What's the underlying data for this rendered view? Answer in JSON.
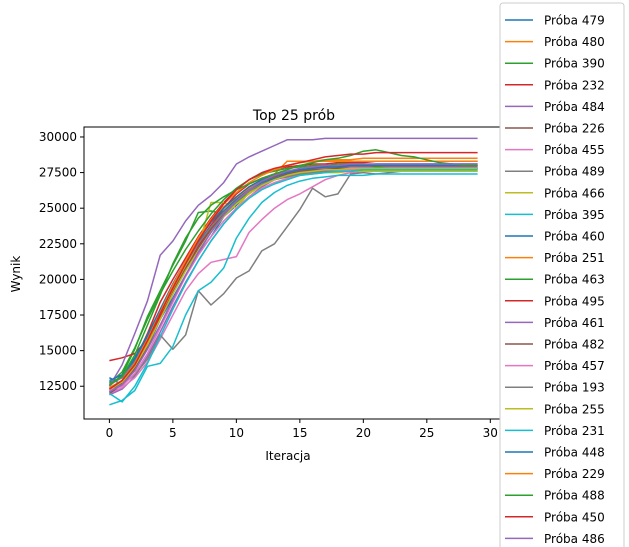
{
  "chart_data": {
    "type": "line",
    "title": "Top 25 prób",
    "xlabel": "Iteracja",
    "ylabel": "Wynik",
    "xlim": [
      -2,
      31
    ],
    "ylim": [
      10200,
      30700
    ],
    "xticks": [
      0,
      5,
      10,
      15,
      20,
      25,
      30
    ],
    "xtick_labels": [
      "0",
      "5",
      "10",
      "15",
      "20",
      "25",
      "30"
    ],
    "yticks": [
      12500,
      15000,
      17500,
      20000,
      22500,
      25000,
      27500,
      30000
    ],
    "ytick_labels": [
      "12500",
      "15000",
      "17500",
      "20000",
      "22500",
      "25000",
      "27500",
      "30000"
    ],
    "grid": false,
    "legend_position": "outside-right",
    "x": [
      0,
      1,
      2,
      3,
      4,
      5,
      6,
      7,
      8,
      9,
      10,
      11,
      12,
      13,
      14,
      15,
      16,
      17,
      18,
      19,
      20,
      21,
      22,
      23,
      24,
      25,
      26,
      27,
      28,
      29
    ],
    "series": [
      {
        "name": "Próba 479",
        "color": "#1f77b4",
        "values": [
          13100,
          12600,
          13800,
          15200,
          17200,
          18700,
          20300,
          21800,
          23000,
          24400,
          25200,
          26200,
          26600,
          27000,
          27300,
          27500,
          27700,
          27800,
          27900,
          28000,
          28000,
          28100,
          28100,
          28100,
          28100,
          28100,
          28100,
          28100,
          28100,
          28100
        ]
      },
      {
        "name": "Próba 480",
        "color": "#ff7f0e",
        "values": [
          12300,
          12800,
          14000,
          15700,
          17600,
          19300,
          20900,
          22300,
          23600,
          24800,
          25700,
          26400,
          26900,
          27200,
          27500,
          27700,
          27800,
          27900,
          27900,
          28000,
          28000,
          28000,
          28000,
          28000,
          28000,
          28000,
          28000,
          28000,
          28000,
          28000
        ]
      },
      {
        "name": "Próba 390",
        "color": "#2ca02c",
        "values": [
          12500,
          13300,
          15100,
          17400,
          19200,
          21000,
          22700,
          24700,
          24800,
          24600,
          25400,
          26100,
          26600,
          27000,
          27300,
          27500,
          27600,
          27700,
          27700,
          27700,
          27800,
          27800,
          27800,
          27800,
          27800,
          27800,
          27800,
          27800,
          27800,
          27800
        ]
      },
      {
        "name": "Próba 232",
        "color": "#d62728",
        "values": [
          12200,
          12900,
          14300,
          16200,
          18400,
          20000,
          21500,
          23000,
          24300,
          25400,
          26300,
          27000,
          27400,
          27700,
          27900,
          28000,
          28100,
          28100,
          28200,
          28200,
          28200,
          28300,
          28300,
          28300,
          28300,
          28300,
          28300,
          28300,
          28300,
          28300
        ]
      },
      {
        "name": "Próba 484",
        "color": "#9467bd",
        "values": [
          11900,
          12300,
          13200,
          14600,
          16300,
          18100,
          19800,
          21300,
          22700,
          23900,
          24900,
          25800,
          26500,
          27000,
          27400,
          27600,
          27700,
          27800,
          27800,
          27900,
          27900,
          27900,
          27900,
          27900,
          27900,
          27900,
          27900,
          27900,
          27900,
          27900
        ]
      },
      {
        "name": "Próba 226",
        "color": "#8c564b",
        "values": [
          12100,
          12700,
          13800,
          15500,
          17300,
          19100,
          20800,
          22300,
          23600,
          24700,
          25600,
          26300,
          26800,
          27200,
          27400,
          27600,
          27700,
          27700,
          27800,
          27800,
          27800,
          27800,
          27800,
          27800,
          27800,
          27800,
          27800,
          27800,
          27800,
          27800
        ]
      },
      {
        "name": "Próba 455",
        "color": "#e377c2",
        "values": [
          12000,
          12400,
          13100,
          14200,
          15800,
          17500,
          19200,
          20400,
          21200,
          21400,
          21600,
          23300,
          24200,
          25000,
          25600,
          26000,
          26500,
          27000,
          27300,
          27500,
          27600,
          27700,
          27700,
          27800,
          27800,
          27800,
          27800,
          27800,
          27800,
          27800
        ]
      },
      {
        "name": "Próba 489",
        "color": "#7f7f7f",
        "values": [
          12400,
          12600,
          13300,
          14400,
          16100,
          15100,
          16100,
          19200,
          18200,
          19000,
          20100,
          20600,
          22000,
          22500,
          23700,
          24900,
          26400,
          25800,
          26000,
          27400,
          27500,
          27400,
          27500,
          27600,
          27600,
          27600,
          27600,
          27600,
          27600,
          27600
        ]
      },
      {
        "name": "Próba 466",
        "color": "#bcbd22",
        "values": [
          12200,
          12900,
          14100,
          15700,
          17500,
          19400,
          21000,
          22300,
          25400,
          25400,
          25000,
          26100,
          26800,
          27100,
          27200,
          27300,
          27400,
          27500,
          27500,
          27600,
          27600,
          27600,
          27600,
          27600,
          27600,
          27600,
          27600,
          27600,
          27600,
          27600
        ]
      },
      {
        "name": "Próba 395",
        "color": "#17becf",
        "values": [
          11200,
          11500,
          12200,
          13900,
          14100,
          15300,
          17500,
          19200,
          19800,
          20800,
          22900,
          24300,
          25400,
          26100,
          26600,
          26900,
          27100,
          27200,
          27300,
          27300,
          27300,
          27400,
          27400,
          27400,
          27400,
          27400,
          27400,
          27400,
          27400,
          27400
        ]
      },
      {
        "name": "Próba 460",
        "color": "#1f77b4",
        "values": [
          12800,
          13100,
          14400,
          16000,
          17800,
          19600,
          21100,
          22600,
          23800,
          24800,
          25600,
          26300,
          26800,
          27100,
          27300,
          27500,
          27600,
          27700,
          27700,
          27800,
          27800,
          27800,
          27800,
          27800,
          27800,
          27800,
          27800,
          27800,
          27800,
          27800
        ]
      },
      {
        "name": "Próba 251",
        "color": "#ff7f0e",
        "values": [
          12100,
          12600,
          13900,
          15600,
          17600,
          19500,
          21200,
          22800,
          24100,
          25100,
          25800,
          26500,
          27000,
          27400,
          28300,
          28300,
          28300,
          28300,
          28300,
          28300,
          28300,
          28300,
          28300,
          28300,
          28300,
          28300,
          28300,
          28300,
          28300,
          28300
        ]
      },
      {
        "name": "Próba 463",
        "color": "#2ca02c",
        "values": [
          12700,
          13500,
          15200,
          17200,
          19000,
          20600,
          22100,
          23400,
          24600,
          25600,
          26400,
          27000,
          27400,
          27600,
          27800,
          27900,
          28000,
          28000,
          28100,
          28100,
          28100,
          27900,
          27800,
          27800,
          27800,
          27800,
          27800,
          27800,
          27800,
          27800
        ]
      },
      {
        "name": "Próba 495",
        "color": "#d62728",
        "values": [
          14300,
          14500,
          14800,
          15800,
          17400,
          19000,
          20700,
          22300,
          23800,
          25000,
          26000,
          26700,
          27100,
          27400,
          27600,
          27700,
          27800,
          27900,
          27900,
          28000,
          28000,
          28000,
          28000,
          28000,
          28000,
          28000,
          28000,
          28000,
          28000,
          28000
        ]
      },
      {
        "name": "Próba 461",
        "color": "#9467bd",
        "values": [
          12500,
          14000,
          16200,
          18500,
          21700,
          22700,
          24100,
          25200,
          25900,
          26800,
          28100,
          28600,
          29000,
          29400,
          29800,
          29800,
          29800,
          29900,
          29900,
          29900,
          29900,
          29900,
          29900,
          29900,
          29900,
          29900,
          29900,
          29900,
          29900,
          29900
        ]
      },
      {
        "name": "Próba 482",
        "color": "#8c564b",
        "values": [
          12000,
          12600,
          13700,
          15300,
          17200,
          19000,
          20700,
          22200,
          23500,
          24600,
          25500,
          26200,
          26700,
          27000,
          27300,
          27500,
          27600,
          27700,
          27700,
          27800,
          27800,
          27800,
          27800,
          27800,
          27800,
          27800,
          27800,
          27800,
          27800,
          27800
        ]
      },
      {
        "name": "Próba 457",
        "color": "#e377c2",
        "values": [
          12200,
          12500,
          13400,
          14800,
          16600,
          18400,
          20200,
          21700,
          23000,
          24100,
          25000,
          25800,
          26400,
          26800,
          27100,
          27300,
          27500,
          27600,
          27700,
          27700,
          27800,
          27800,
          27800,
          27800,
          27800,
          27800,
          27800,
          27800,
          27800,
          27800
        ]
      },
      {
        "name": "Próba 193",
        "color": "#7f7f7f",
        "values": [
          12600,
          13100,
          14200,
          15800,
          17700,
          19500,
          21100,
          22500,
          23700,
          24700,
          25500,
          26200,
          26700,
          27000,
          27200,
          27400,
          27500,
          27600,
          27600,
          27600,
          27700,
          27700,
          27700,
          27700,
          27700,
          27700,
          27700,
          27700,
          27700,
          27700
        ]
      },
      {
        "name": "Próba 255",
        "color": "#bcbd22",
        "values": [
          12300,
          12800,
          13900,
          15400,
          17200,
          19000,
          20600,
          22000,
          23300,
          24400,
          25300,
          26000,
          26600,
          27000,
          27300,
          27500,
          27600,
          27700,
          27700,
          27800,
          27800,
          27800,
          27800,
          27800,
          27800,
          27800,
          27800,
          27800,
          27800,
          27800
        ]
      },
      {
        "name": "Próba 231",
        "color": "#17becf",
        "values": [
          12000,
          11400,
          12500,
          14100,
          16000,
          17900,
          19700,
          21300,
          22700,
          23900,
          24900,
          25700,
          26300,
          26700,
          27000,
          27300,
          27400,
          27500,
          27600,
          27600,
          27700,
          27700,
          27700,
          27700,
          27700,
          27700,
          27700,
          27700,
          27700,
          27700
        ]
      },
      {
        "name": "Próba 448",
        "color": "#1f77b4",
        "values": [
          12900,
          13300,
          14500,
          16100,
          17900,
          19700,
          21300,
          22800,
          24000,
          25000,
          25800,
          26500,
          27000,
          27300,
          27500,
          27700,
          27800,
          27900,
          27900,
          28000,
          28000,
          28000,
          28000,
          28000,
          28000,
          28000,
          28000,
          28000,
          28000,
          28000
        ]
      },
      {
        "name": "Próba 229",
        "color": "#ff7f0e",
        "values": [
          12400,
          12900,
          14100,
          15800,
          17700,
          19600,
          21300,
          22900,
          24200,
          25300,
          26100,
          26800,
          27300,
          27700,
          28000,
          28200,
          28300,
          28400,
          28400,
          28400,
          28500,
          28500,
          28500,
          28500,
          28500,
          28500,
          28500,
          28500,
          28500,
          28500
        ]
      },
      {
        "name": "Próba 488",
        "color": "#2ca02c",
        "values": [
          12600,
          13200,
          14700,
          16800,
          18900,
          21100,
          22900,
          24300,
          25200,
          25800,
          26300,
          26700,
          27100,
          27400,
          27700,
          28000,
          28200,
          28400,
          28500,
          28700,
          29000,
          29100,
          28900,
          28700,
          28600,
          28400,
          28200,
          28100,
          28000,
          28000
        ]
      },
      {
        "name": "Próba 450",
        "color": "#d62728",
        "values": [
          12300,
          12900,
          14000,
          15700,
          17600,
          19400,
          21100,
          22700,
          24100,
          25300,
          26300,
          27000,
          27500,
          27800,
          28000,
          28200,
          28400,
          28600,
          28700,
          28800,
          28800,
          28900,
          28900,
          28900,
          28900,
          28900,
          28900,
          28900,
          28900,
          28900
        ]
      },
      {
        "name": "Próba 486",
        "color": "#9467bd",
        "values": [
          12100,
          12600,
          13600,
          15100,
          16800,
          18600,
          20300,
          21900,
          23300,
          24500,
          25500,
          26300,
          26900,
          27300,
          27600,
          27800,
          27900,
          28000,
          28000,
          28100,
          28100,
          28100,
          28100,
          28100,
          28100,
          28100,
          28100,
          28100,
          28100,
          28100
        ]
      }
    ]
  }
}
